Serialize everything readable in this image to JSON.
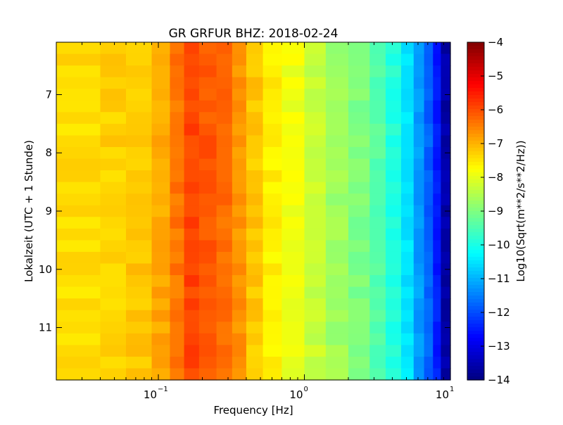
{
  "chart_data": {
    "type": "heatmap",
    "title": "GR GRFUR BHZ: 2018-02-24",
    "xlabel": "Frequency [Hz]",
    "ylabel": "Lokalzeit (UTC + 1 Stunde)",
    "x_scale": "log",
    "xlim": [
      0.02,
      10
    ],
    "x_ticks": [
      {
        "value": 0.1,
        "base": "10",
        "exp": "−1"
      },
      {
        "value": 1,
        "base": "10",
        "exp": "0"
      },
      {
        "value": 10,
        "base": "10",
        "exp": "1"
      }
    ],
    "ylim": [
      6.1,
      11.9
    ],
    "y_inverted": true,
    "y_ticks": [
      "7",
      "8",
      "9",
      "10",
      "11"
    ],
    "colorbar": {
      "label": "Log10(Sqrt(m**2/s**2/Hz))",
      "colormap": "jet",
      "range": [
        -14,
        -4
      ],
      "ticks": [
        "−4",
        "−5",
        "−6",
        "−7",
        "−8",
        "−9",
        "−10",
        "−11",
        "−12",
        "−13",
        "−14"
      ]
    },
    "x_bin_edges": [
      0.02,
      0.04,
      0.06,
      0.09,
      0.12,
      0.15,
      0.19,
      0.25,
      0.32,
      0.4,
      0.52,
      0.7,
      1.0,
      1.4,
      2.0,
      2.8,
      3.6,
      4.6,
      5.6,
      6.6,
      7.6,
      8.6,
      10
    ],
    "spectrum_profile": [
      -7.4,
      -7.3,
      -7.2,
      -6.9,
      -6.4,
      -5.9,
      -6.1,
      -6.3,
      -6.7,
      -7.2,
      -7.6,
      -7.9,
      -8.3,
      -8.7,
      -9.0,
      -9.4,
      -9.9,
      -10.5,
      -11.2,
      -11.8,
      -12.5,
      -13.6
    ],
    "y_rows": [
      6.1,
      6.3,
      6.5,
      6.7,
      6.9,
      7.1,
      7.3,
      7.5,
      7.7,
      7.9,
      8.1,
      8.3,
      8.5,
      8.7,
      8.9,
      9.1,
      9.3,
      9.5,
      9.7,
      9.9,
      10.1,
      10.3,
      10.5,
      10.7,
      10.9,
      11.1,
      11.3,
      11.5,
      11.7,
      11.9
    ]
  }
}
